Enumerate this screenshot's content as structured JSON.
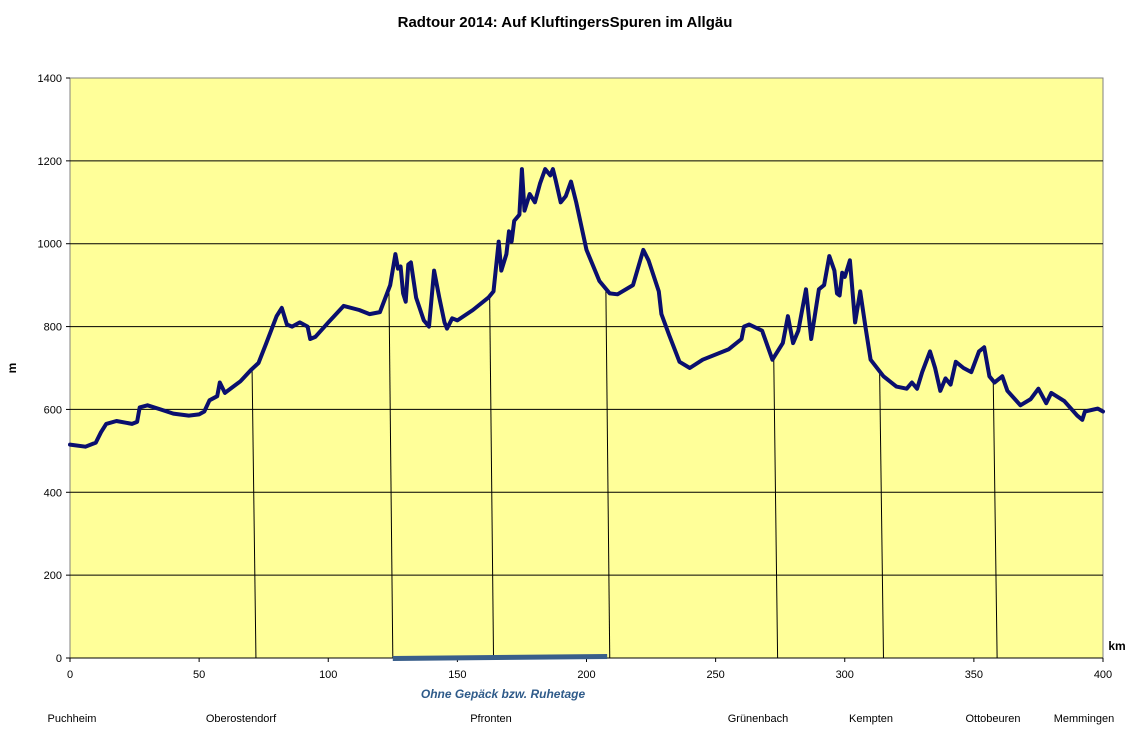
{
  "chart_data": {
    "type": "line",
    "title": "Radtour 2014:  Auf KluftingersSpuren im Allgäu",
    "xlabel": "km",
    "ylabel": "m",
    "xlim": [
      0,
      400
    ],
    "ylim": [
      0,
      1400
    ],
    "x_ticks": [
      0,
      50,
      100,
      150,
      200,
      250,
      300,
      350,
      400
    ],
    "y_ticks": [
      0,
      200,
      400,
      600,
      800,
      1000,
      1200,
      1400
    ],
    "grid": "horizontal",
    "plot_background": "#ffff99",
    "series": [
      {
        "color": "#0a0f6e",
        "points": [
          [
            0,
            515
          ],
          [
            6,
            510
          ],
          [
            10,
            520
          ],
          [
            12,
            545
          ],
          [
            14,
            565
          ],
          [
            18,
            572
          ],
          [
            24,
            565
          ],
          [
            26,
            570
          ],
          [
            27,
            605
          ],
          [
            30,
            610
          ],
          [
            35,
            600
          ],
          [
            40,
            590
          ],
          [
            46,
            585
          ],
          [
            50,
            588
          ],
          [
            52,
            595
          ],
          [
            54,
            622
          ],
          [
            57,
            632
          ],
          [
            58,
            665
          ],
          [
            60,
            640
          ],
          [
            66,
            668
          ],
          [
            70,
            695
          ],
          [
            73,
            712
          ],
          [
            76,
            760
          ],
          [
            80,
            825
          ],
          [
            82,
            845
          ],
          [
            84,
            805
          ],
          [
            86,
            800
          ],
          [
            89,
            810
          ],
          [
            92,
            800
          ],
          [
            93,
            770
          ],
          [
            95,
            775
          ],
          [
            100,
            810
          ],
          [
            106,
            850
          ],
          [
            112,
            840
          ],
          [
            116,
            830
          ],
          [
            120,
            835
          ],
          [
            124,
            900
          ],
          [
            126,
            975
          ],
          [
            127,
            940
          ],
          [
            128,
            945
          ],
          [
            129,
            880
          ],
          [
            130,
            860
          ],
          [
            131,
            950
          ],
          [
            132,
            955
          ],
          [
            134,
            870
          ],
          [
            137,
            815
          ],
          [
            139,
            800
          ],
          [
            141,
            935
          ],
          [
            143,
            870
          ],
          [
            145,
            810
          ],
          [
            146,
            795
          ],
          [
            148,
            820
          ],
          [
            150,
            815
          ],
          [
            156,
            840
          ],
          [
            162,
            870
          ],
          [
            164,
            885
          ],
          [
            166,
            1005
          ],
          [
            167,
            935
          ],
          [
            169,
            975
          ],
          [
            170,
            1030
          ],
          [
            171,
            1005
          ],
          [
            172,
            1055
          ],
          [
            174,
            1070
          ],
          [
            175,
            1180
          ],
          [
            176,
            1080
          ],
          [
            178,
            1120
          ],
          [
            180,
            1100
          ],
          [
            182,
            1145
          ],
          [
            184,
            1180
          ],
          [
            186,
            1165
          ],
          [
            187,
            1180
          ],
          [
            188,
            1155
          ],
          [
            190,
            1100
          ],
          [
            192,
            1115
          ],
          [
            194,
            1150
          ],
          [
            196,
            1100
          ],
          [
            200,
            985
          ],
          [
            205,
            910
          ],
          [
            209,
            880
          ],
          [
            212,
            878
          ],
          [
            218,
            900
          ],
          [
            222,
            985
          ],
          [
            224,
            960
          ],
          [
            228,
            885
          ],
          [
            229,
            830
          ],
          [
            232,
            780
          ],
          [
            236,
            715
          ],
          [
            240,
            700
          ],
          [
            245,
            720
          ],
          [
            255,
            745
          ],
          [
            260,
            770
          ],
          [
            261,
            800
          ],
          [
            263,
            805
          ],
          [
            268,
            790
          ],
          [
            272,
            720
          ],
          [
            276,
            760
          ],
          [
            278,
            825
          ],
          [
            280,
            760
          ],
          [
            282,
            790
          ],
          [
            285,
            890
          ],
          [
            287,
            770
          ],
          [
            290,
            890
          ],
          [
            292,
            900
          ],
          [
            294,
            970
          ],
          [
            296,
            935
          ],
          [
            297,
            880
          ],
          [
            298,
            875
          ],
          [
            299,
            930
          ],
          [
            300,
            920
          ],
          [
            302,
            960
          ],
          [
            304,
            810
          ],
          [
            306,
            885
          ],
          [
            308,
            800
          ],
          [
            310,
            720
          ],
          [
            315,
            680
          ],
          [
            320,
            655
          ],
          [
            324,
            650
          ],
          [
            326,
            665
          ],
          [
            328,
            650
          ],
          [
            330,
            690
          ],
          [
            333,
            740
          ],
          [
            335,
            700
          ],
          [
            337,
            645
          ],
          [
            339,
            675
          ],
          [
            341,
            660
          ],
          [
            343,
            715
          ],
          [
            346,
            700
          ],
          [
            349,
            690
          ],
          [
            352,
            740
          ],
          [
            354,
            750
          ],
          [
            356,
            680
          ],
          [
            358,
            665
          ],
          [
            361,
            680
          ],
          [
            363,
            645
          ],
          [
            368,
            610
          ],
          [
            372,
            625
          ],
          [
            375,
            650
          ],
          [
            378,
            615
          ],
          [
            380,
            640
          ],
          [
            385,
            620
          ],
          [
            390,
            585
          ],
          [
            392,
            575
          ],
          [
            393,
            595
          ],
          [
            398,
            602
          ],
          [
            400,
            595
          ]
        ]
      }
    ],
    "stage_markers_km": [
      72,
      125,
      164,
      209,
      274,
      315,
      359
    ],
    "rest_bar": {
      "from_km": 125,
      "to_km": 208,
      "label": "Ohne Gepäck bzw.  Ruhetage",
      "color": "#3a5f8a"
    },
    "places": [
      "Puchheim",
      "Oberostendorf",
      "Pfronten",
      "Grünenbach",
      "Kempten",
      "Ottobeuren",
      "Memmingen"
    ]
  }
}
